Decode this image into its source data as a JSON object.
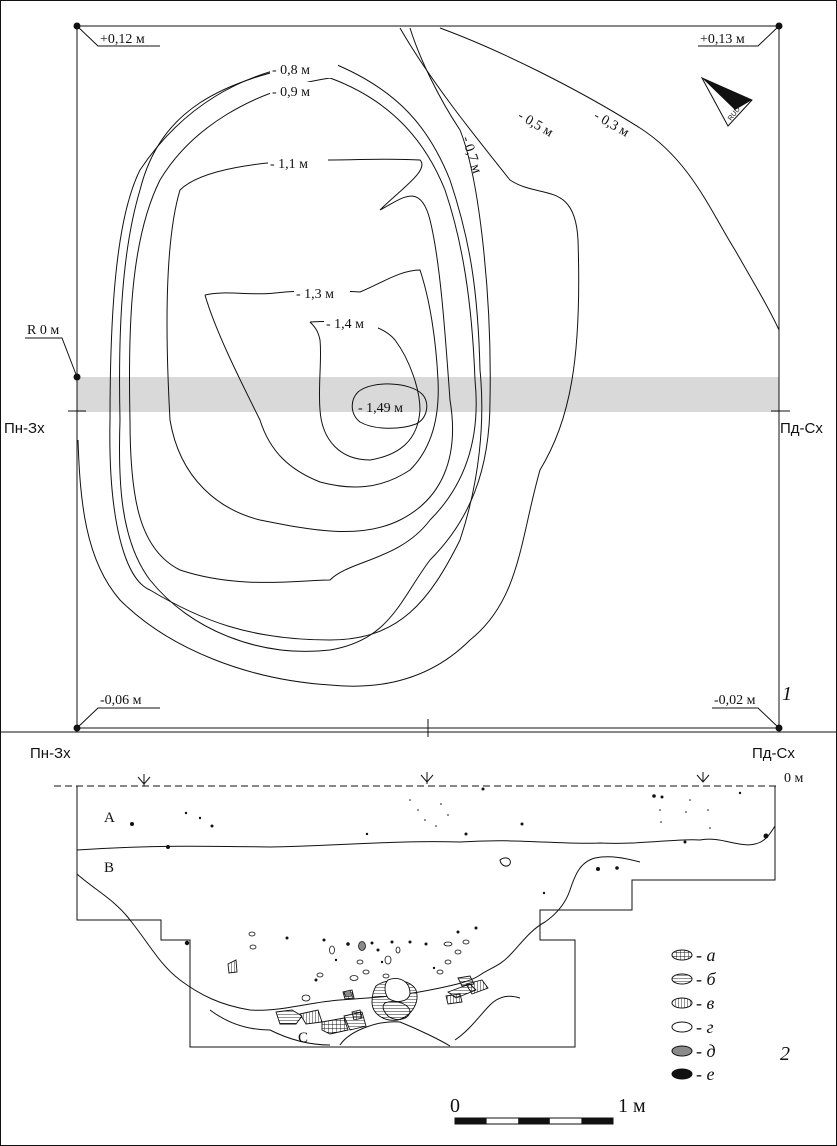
{
  "plan": {
    "corner_levels": [
      "+0,12 м",
      "+0,13 м",
      "-0,06 м",
      "-0,02 м"
    ],
    "benchmark": "R 0 м",
    "direction_left": "Пн-Зх",
    "direction_right": "Пд-Сх",
    "contours": [
      "- 0,8 м",
      "- 0,9 м",
      "- 1,1 м",
      "- 1,3 м",
      "- 1,4 м",
      "- 1,49 м",
      "- 0,7 м",
      "- 0,5 м",
      "- 0,3 м"
    ],
    "north_arrow_text": "RUD",
    "panel_number": "1"
  },
  "section": {
    "direction_left": "Пн-Зх",
    "direction_right": "Пд-Сх",
    "zero_level": "0 м",
    "layers": [
      "A",
      "B",
      "C"
    ],
    "panel_number": "2"
  },
  "legend": {
    "items": [
      {
        "letter": "- а",
        "pattern": "cross-hatch"
      },
      {
        "letter": "- б",
        "pattern": "horizontal-hatch"
      },
      {
        "letter": "- в",
        "pattern": "vertical-hatch"
      },
      {
        "letter": "- г",
        "pattern": "empty"
      },
      {
        "letter": "- д",
        "pattern": "grey"
      },
      {
        "letter": "- е",
        "pattern": "black"
      }
    ]
  },
  "scale_bar": {
    "start": "0",
    "end": "1 м"
  },
  "colors": {
    "ink": "#111111",
    "band": "#d9d9d9",
    "grey_fill": "#8a8a8a"
  }
}
